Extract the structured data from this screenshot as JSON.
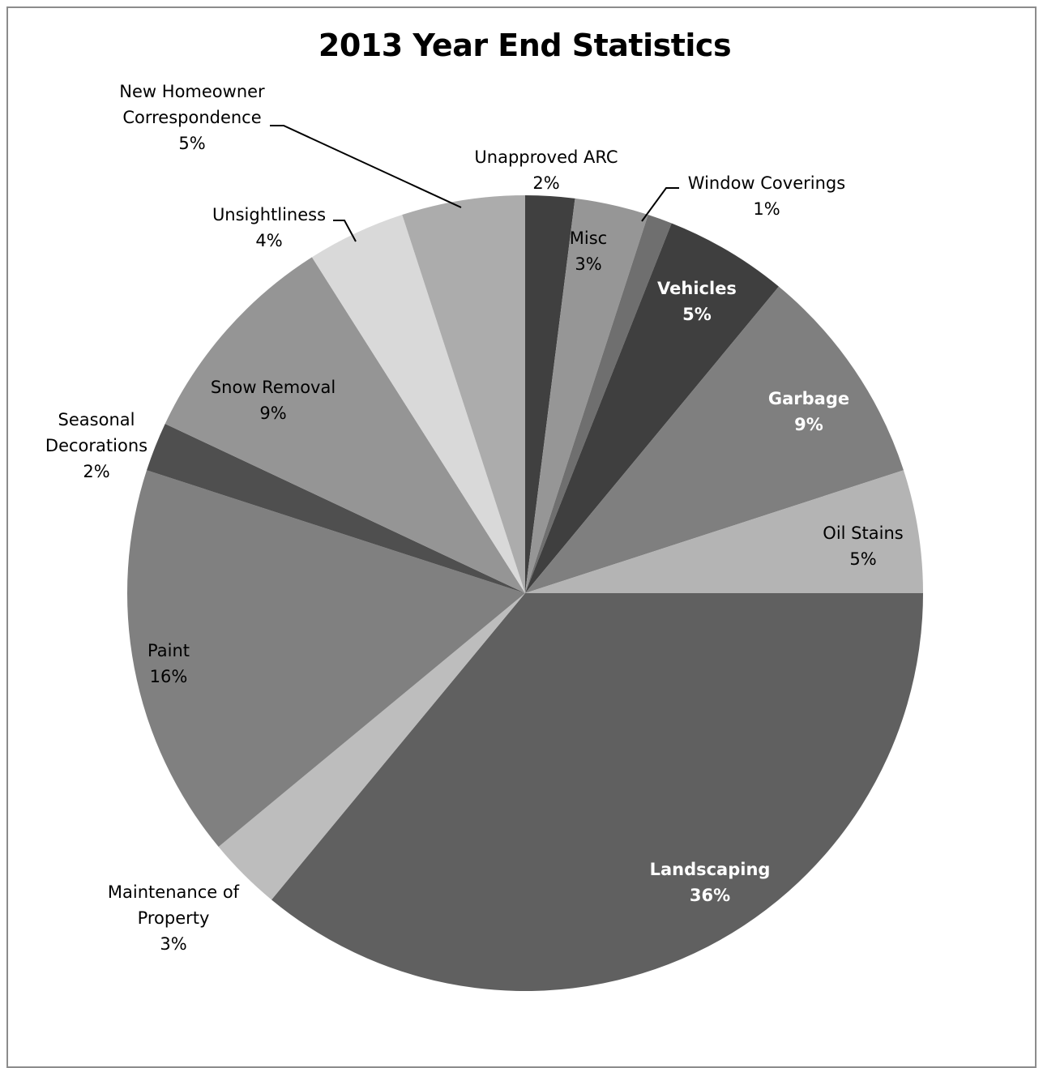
{
  "chart_data": {
    "type": "pie",
    "title": "2013 Year End Statistics",
    "slices": [
      {
        "label": "Unapproved ARC",
        "value": 2,
        "pct_label": "2%",
        "color": "#404040"
      },
      {
        "label": "Misc",
        "value": 3,
        "pct_label": "3%",
        "color": "#969696"
      },
      {
        "label": "Window Coverings",
        "value": 1,
        "pct_label": "1%",
        "color": "#6f6f6f"
      },
      {
        "label": "Vehicles",
        "value": 5,
        "pct_label": "5%",
        "color": "#3f3f3f"
      },
      {
        "label": "Garbage",
        "value": 9,
        "pct_label": "9%",
        "color": "#7f7f7f"
      },
      {
        "label": "Oil Stains",
        "value": 5,
        "pct_label": "5%",
        "color": "#b4b4b4"
      },
      {
        "label": "Landscaping",
        "value": 36,
        "pct_label": "36%",
        "color": "#606060"
      },
      {
        "label": "Maintenance of Property",
        "value": 3,
        "pct_label": "3%",
        "color": "#bdbdbd"
      },
      {
        "label": "Paint",
        "value": 16,
        "pct_label": "16%",
        "color": "#808080"
      },
      {
        "label": "Seasonal Decorations",
        "value": 2,
        "pct_label": "2%",
        "color": "#4f4f4f"
      },
      {
        "label": "Snow Removal",
        "value": 9,
        "pct_label": "9%",
        "color": "#959595"
      },
      {
        "label": "Unsightliness",
        "value": 4,
        "pct_label": "4%",
        "color": "#d9d9d9"
      },
      {
        "label": "New Homeowner Correspondence",
        "value": 5,
        "pct_label": "5%",
        "color": "#acacac"
      }
    ],
    "legend": "none"
  }
}
